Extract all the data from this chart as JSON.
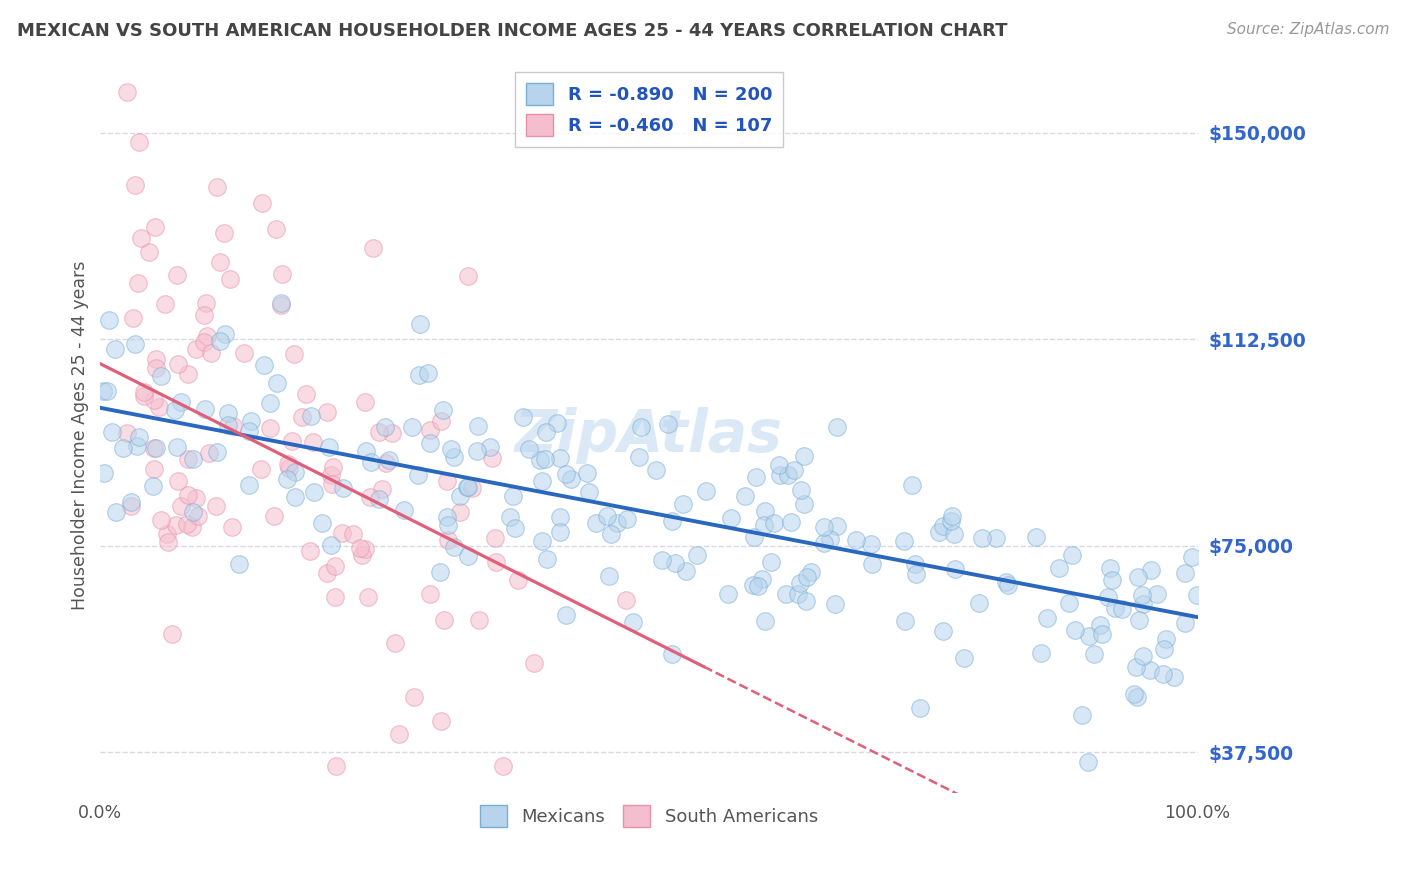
{
  "title": "MEXICAN VS SOUTH AMERICAN HOUSEHOLDER INCOME AGES 25 - 44 YEARS CORRELATION CHART",
  "source": "Source: ZipAtlas.com",
  "ylabel": "Householder Income Ages 25 - 44 years",
  "xlim": [
    0,
    1
  ],
  "ylim": [
    30000,
    160000
  ],
  "yticks": [
    37500,
    75000,
    112500,
    150000
  ],
  "ytick_labels": [
    "$37,500",
    "$75,000",
    "$112,500",
    "$150,000"
  ],
  "xtick_labels": [
    "0.0%",
    "100.0%"
  ],
  "legend_items": [
    {
      "label": "R = -0.890   N = 200",
      "color": "#b8d4ed"
    },
    {
      "label": "R = -0.460   N = 107",
      "color": "#f5bece"
    }
  ],
  "mexicans_color": "#b8d4ed",
  "mexicans_edge_color": "#7aadd4",
  "south_americans_color": "#f5bece",
  "south_americans_edge_color": "#e890aa",
  "trend_blue_color": "#2a68c0",
  "trend_pink_color": "#e0607a",
  "background_color": "#ffffff",
  "grid_color": "#d8d8e8",
  "title_color": "#444444",
  "axis_label_color": "#555555",
  "ytick_color": "#3366cc",
  "source_color": "#999999",
  "watermark": "ZipAtlas",
  "watermark_color": "#b8d4ee",
  "N_mexicans": 200,
  "N_south_americans": 107,
  "mex_intercept": 100000,
  "mex_slope": -38000,
  "sa_intercept": 108000,
  "sa_slope": -100000,
  "dot_size": 160,
  "dot_alpha": 0.55,
  "seed": 12
}
